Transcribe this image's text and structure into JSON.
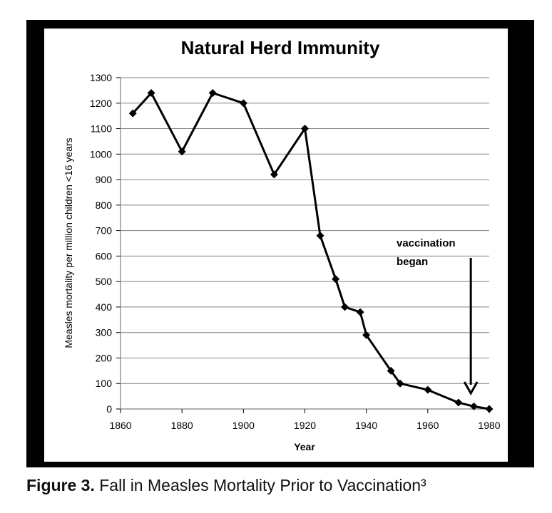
{
  "chart_data": {
    "type": "line",
    "title": "Natural Herd Immunity",
    "xlabel": "Year",
    "ylabel": "Measles mortality per million children <16 years",
    "xlim": [
      1860,
      1980
    ],
    "ylim": [
      0,
      1300
    ],
    "xticks": [
      1860,
      1880,
      1900,
      1920,
      1940,
      1960,
      1980
    ],
    "yticks": [
      0,
      100,
      200,
      300,
      400,
      500,
      600,
      700,
      800,
      900,
      1000,
      1100,
      1200,
      1300
    ],
    "grid": "horizontal",
    "series": [
      {
        "x": [
          1864,
          1870,
          1880,
          1890,
          1900,
          1910,
          1920,
          1925,
          1930,
          1933,
          1938,
          1940,
          1948,
          1951,
          1960,
          1970,
          1975,
          1980
        ],
        "y": [
          1160,
          1240,
          1010,
          1240,
          1200,
          920,
          1100,
          680,
          510,
          400,
          380,
          290,
          150,
          100,
          75,
          25,
          10,
          0
        ]
      }
    ],
    "annotation": {
      "text_line1": "vaccination",
      "text_line2": "began",
      "x": 1974
    }
  },
  "caption": {
    "label": "Figure 3.",
    "text": " Fall in Measles Mortality Prior to Vaccination³"
  },
  "colors": {
    "line": "#000000",
    "grid": "#808080",
    "frame": "#000000"
  }
}
